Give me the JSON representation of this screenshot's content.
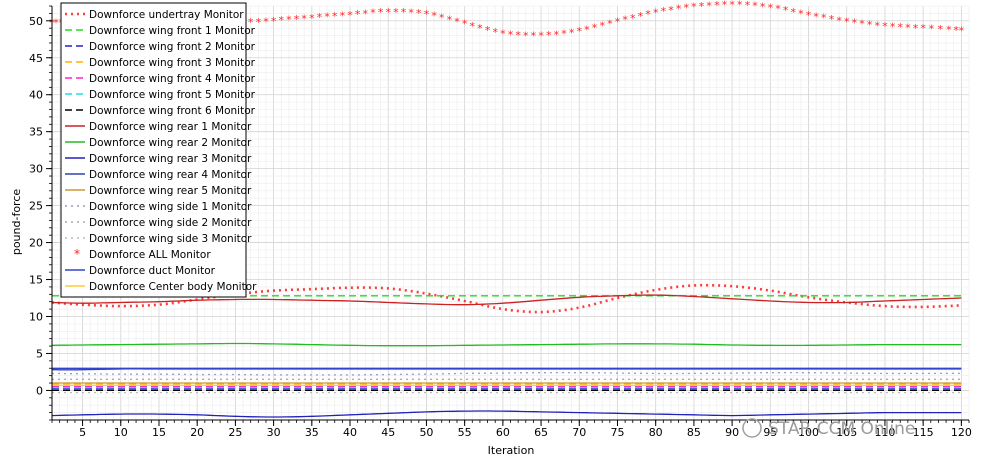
{
  "chart_data": {
    "type": "line",
    "xlabel": "Iteration",
    "ylabel": "pound-force",
    "xlim": [
      1,
      121
    ],
    "ylim": [
      -4,
      52
    ],
    "xticks": [
      5,
      10,
      15,
      20,
      25,
      30,
      35,
      40,
      45,
      50,
      55,
      60,
      65,
      70,
      75,
      80,
      85,
      90,
      95,
      100,
      105,
      110,
      115,
      120
    ],
    "yticks": [
      0,
      5,
      10,
      15,
      20,
      25,
      30,
      35,
      40,
      45,
      50
    ],
    "grid": true,
    "legend_position": "top-left",
    "x": [
      1,
      5,
      10,
      15,
      20,
      25,
      30,
      35,
      40,
      45,
      50,
      55,
      60,
      65,
      70,
      75,
      80,
      85,
      90,
      95,
      100,
      105,
      110,
      115,
      120
    ],
    "series": [
      {
        "name": "Downforce undertray Monitor",
        "color": "#ff3b3b",
        "style": "dotted",
        "values": [
          11.9,
          11.6,
          11.4,
          11.6,
          12.3,
          13.0,
          13.5,
          13.7,
          13.9,
          13.8,
          13.1,
          12.1,
          11.0,
          10.6,
          11.2,
          12.5,
          13.6,
          14.2,
          14.1,
          13.5,
          12.6,
          11.9,
          11.4,
          11.3,
          11.5
        ]
      },
      {
        "name": "Downforce wing front 1 Monitor",
        "color": "#22dd22",
        "style": "dashed",
        "values": [
          12.8,
          12.8,
          12.8,
          12.8,
          12.8,
          12.8,
          12.8,
          12.8,
          12.8,
          12.8,
          12.8,
          12.8,
          12.8,
          12.8,
          12.8,
          12.8,
          12.8,
          12.8,
          12.8,
          12.8,
          12.8,
          12.8,
          12.8,
          12.8,
          12.8
        ]
      },
      {
        "name": "Downforce wing front 2 Monitor",
        "color": "#2222cc",
        "style": "dashed",
        "values": [
          0.2,
          0.2,
          0.2,
          0.2,
          0.2,
          0.2,
          0.2,
          0.2,
          0.2,
          0.2,
          0.2,
          0.2,
          0.2,
          0.2,
          0.2,
          0.2,
          0.2,
          0.2,
          0.2,
          0.2,
          0.2,
          0.2,
          0.2,
          0.2,
          0.2
        ]
      },
      {
        "name": "Downforce wing front 3 Monitor",
        "color": "#ffb000",
        "style": "dashed",
        "values": [
          0.9,
          0.9,
          0.9,
          0.9,
          0.9,
          0.9,
          0.9,
          0.9,
          0.9,
          0.9,
          0.9,
          0.9,
          0.9,
          0.9,
          0.9,
          0.9,
          0.9,
          0.9,
          0.9,
          0.9,
          0.9,
          0.9,
          0.9,
          0.9,
          0.9
        ]
      },
      {
        "name": "Downforce wing front 4 Monitor",
        "color": "#ff22cc",
        "style": "dashed",
        "values": [
          0.5,
          0.5,
          0.5,
          0.5,
          0.5,
          0.5,
          0.5,
          0.5,
          0.5,
          0.5,
          0.5,
          0.5,
          0.5,
          0.5,
          0.5,
          0.5,
          0.5,
          0.5,
          0.5,
          0.5,
          0.5,
          0.5,
          0.5,
          0.5,
          0.5
        ]
      },
      {
        "name": "Downforce wing front 5 Monitor",
        "color": "#22dddd",
        "style": "dashed",
        "values": [
          0.4,
          0.4,
          0.4,
          0.4,
          0.4,
          0.4,
          0.4,
          0.4,
          0.4,
          0.4,
          0.4,
          0.4,
          0.4,
          0.4,
          0.4,
          0.4,
          0.4,
          0.4,
          0.4,
          0.4,
          0.4,
          0.4,
          0.4,
          0.4,
          0.4
        ]
      },
      {
        "name": "Downforce wing front 6 Monitor",
        "color": "#000000",
        "style": "dashed",
        "values": [
          0.0,
          0.0,
          0.0,
          0.0,
          0.0,
          0.0,
          0.0,
          0.0,
          0.0,
          0.0,
          0.0,
          0.0,
          0.0,
          0.0,
          0.0,
          0.0,
          0.0,
          0.0,
          0.0,
          0.0,
          0.0,
          0.0,
          0.0,
          0.0,
          0.0
        ]
      },
      {
        "name": "Downforce wing rear 1 Monitor",
        "color": "#cc2222",
        "style": "solid",
        "values": [
          11.9,
          11.8,
          11.9,
          12.0,
          12.2,
          12.3,
          12.3,
          12.2,
          12.1,
          11.9,
          11.7,
          11.6,
          11.8,
          12.2,
          12.6,
          12.8,
          12.9,
          12.7,
          12.4,
          12.1,
          11.9,
          11.9,
          12.1,
          12.3,
          12.5
        ]
      },
      {
        "name": "Downforce wing rear 2 Monitor",
        "color": "#22bb22",
        "style": "solid",
        "values": [
          6.1,
          6.15,
          6.2,
          6.25,
          6.3,
          6.35,
          6.3,
          6.2,
          6.1,
          6.05,
          6.05,
          6.1,
          6.15,
          6.2,
          6.25,
          6.3,
          6.3,
          6.25,
          6.15,
          6.1,
          6.1,
          6.15,
          6.2,
          6.2,
          6.2
        ]
      },
      {
        "name": "Downforce wing rear 3 Monitor",
        "color": "#2222bb",
        "style": "solid",
        "values": [
          -3.4,
          -3.3,
          -3.2,
          -3.2,
          -3.3,
          -3.5,
          -3.6,
          -3.5,
          -3.3,
          -3.1,
          -2.9,
          -2.8,
          -2.8,
          -2.9,
          -3.0,
          -3.1,
          -3.2,
          -3.3,
          -3.4,
          -3.3,
          -3.2,
          -3.1,
          -3.0,
          -3.0,
          -3.0
        ]
      },
      {
        "name": "Downforce wing rear 4 Monitor",
        "color": "#3344aa",
        "style": "solid",
        "values": [
          2.8,
          2.8,
          2.9,
          2.9,
          2.9,
          2.9,
          2.9,
          2.9,
          2.9,
          2.9,
          2.9,
          2.9,
          2.9,
          2.9,
          2.9,
          2.9,
          2.9,
          2.9,
          2.9,
          2.9,
          2.9,
          2.9,
          2.9,
          2.9,
          2.9
        ]
      },
      {
        "name": "Downforce wing rear 5 Monitor",
        "color": "#cc9933",
        "style": "solid",
        "values": [
          1.0,
          1.0,
          1.0,
          1.0,
          1.0,
          1.0,
          1.0,
          1.0,
          1.0,
          1.0,
          1.0,
          1.0,
          1.0,
          1.0,
          1.0,
          1.0,
          1.0,
          1.0,
          1.0,
          1.0,
          1.0,
          1.0,
          1.0,
          1.0,
          1.0
        ]
      },
      {
        "name": "Downforce wing side 1 Monitor",
        "color": "#9999cc",
        "style": "dotted",
        "values": [
          2.3,
          2.25,
          2.2,
          2.2,
          2.15,
          2.15,
          2.1,
          2.1,
          2.1,
          2.15,
          2.2,
          2.3,
          2.35,
          2.4,
          2.4,
          2.35,
          2.3,
          2.3,
          2.35,
          2.4,
          2.4,
          2.35,
          2.3,
          2.3,
          2.3
        ]
      },
      {
        "name": "Downforce wing side 2 Monitor",
        "color": "#aaaaaa",
        "style": "dotted",
        "values": [
          1.5,
          1.5,
          1.5,
          1.5,
          1.5,
          1.5,
          1.5,
          1.5,
          1.5,
          1.5,
          1.5,
          1.5,
          1.5,
          1.5,
          1.5,
          1.5,
          1.5,
          1.5,
          1.5,
          1.5,
          1.5,
          1.5,
          1.5,
          1.5,
          1.5
        ]
      },
      {
        "name": "Downforce wing side 3 Monitor",
        "color": "#bbbbbb",
        "style": "dotted",
        "values": [
          -0.3,
          -0.3,
          -0.3,
          -0.3,
          -0.3,
          -0.3,
          -0.3,
          -0.3,
          -0.3,
          -0.3,
          -0.3,
          -0.3,
          -0.3,
          -0.3,
          -0.3,
          -0.3,
          -0.3,
          -0.3,
          -0.3,
          -0.3,
          -0.3,
          -0.3,
          -0.3,
          -0.3,
          -0.3
        ]
      },
      {
        "name": "Downforce ALL Monitor",
        "color": "#ff2222",
        "style": "star",
        "values": [
          49.8,
          49.6,
          49.4,
          49.4,
          49.5,
          49.7,
          50.0,
          50.4,
          50.8,
          51.2,
          50.9,
          49.6,
          48.3,
          48.0,
          48.6,
          49.9,
          51.1,
          51.9,
          52.2,
          51.8,
          50.8,
          49.9,
          49.3,
          49.0,
          48.7
        ]
      },
      {
        "name": "Downforce duct Monitor",
        "color": "#3344cc",
        "style": "solid",
        "values": [
          3.0,
          3.0,
          3.0,
          3.0,
          3.0,
          3.0,
          3.0,
          3.0,
          3.0,
          3.0,
          3.0,
          3.0,
          3.0,
          3.0,
          3.0,
          3.0,
          3.0,
          3.0,
          3.0,
          3.0,
          3.0,
          3.0,
          3.0,
          3.0,
          3.0
        ]
      },
      {
        "name": "Downforce Center body Monitor",
        "color": "#ffcc33",
        "style": "solid",
        "values": [
          0.7,
          0.7,
          0.7,
          0.7,
          0.7,
          0.7,
          0.7,
          0.7,
          0.7,
          0.7,
          0.7,
          0.7,
          0.7,
          0.7,
          0.7,
          0.7,
          0.7,
          0.7,
          0.7,
          0.7,
          0.7,
          0.7,
          0.7,
          0.7,
          0.7
        ]
      }
    ],
    "watermark": "STAR CCM Online"
  }
}
